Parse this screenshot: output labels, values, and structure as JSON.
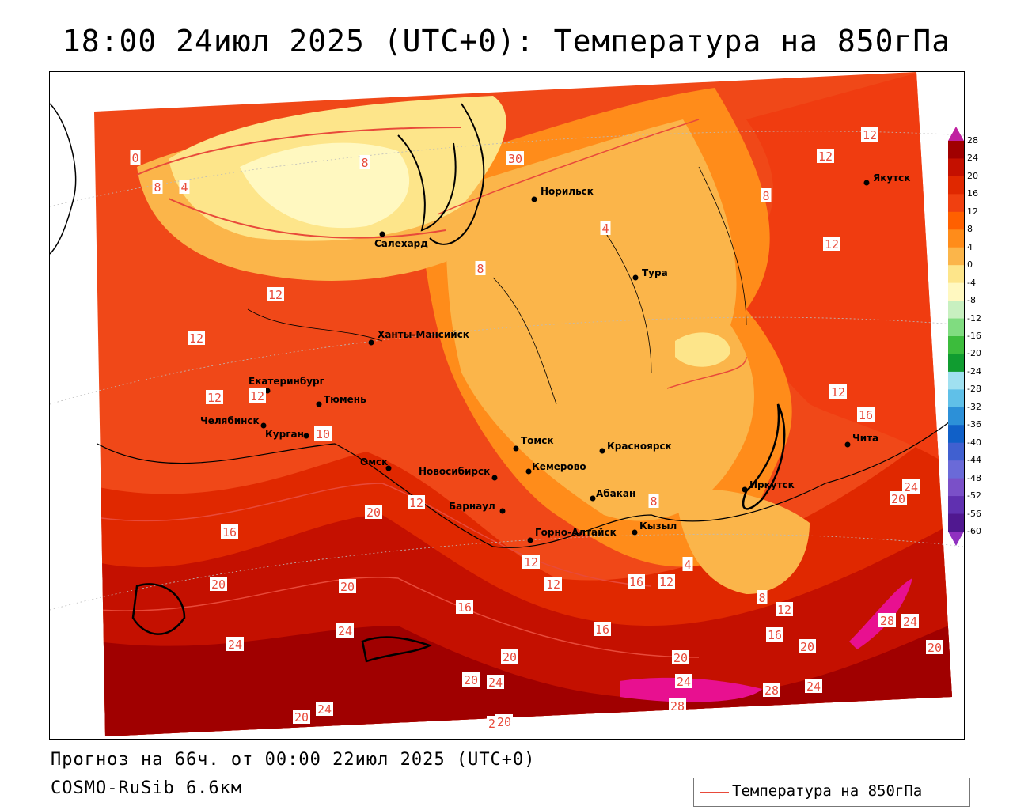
{
  "title": "18:00 24июл 2025 (UTC+0): Температура на 850гПа",
  "footer": {
    "forecast": "Прогноз на 66ч. от 00:00 22июл 2025 (UTC+0)",
    "model": "COSMO-RuSib 6.6км"
  },
  "legend": {
    "label": "Температура на 850гПа",
    "line_color": "#e84a3a"
  },
  "colorbar": {
    "labels": [
      "28",
      "24",
      "20",
      "16",
      "12",
      "8",
      "4",
      "0",
      "-4",
      "-8",
      "-12",
      "-16",
      "-20",
      "-24",
      "-28",
      "-32",
      "-36",
      "-40",
      "-44",
      "-48",
      "-52",
      "-56",
      "-60"
    ],
    "colors": [
      "#a00000",
      "#c41000",
      "#e02800",
      "#f04010",
      "#ff6000",
      "#ff8c1a",
      "#fbb54a",
      "#fde58a",
      "#fff8c0",
      "#c8f0c0",
      "#80dc80",
      "#3cbc3c",
      "#109c30",
      "#a0e0f0",
      "#60c0e8",
      "#2c90d8",
      "#1060c8",
      "#4060d0",
      "#6a6ad8",
      "#7a50c8",
      "#6030b0",
      "#501890"
    ]
  },
  "cities": [
    {
      "name": "Норильск"
    },
    {
      "name": "Якутск"
    },
    {
      "name": "Салехард"
    },
    {
      "name": "Тура"
    },
    {
      "name": "Ханты-Мансийск"
    },
    {
      "name": "Екатеринбург"
    },
    {
      "name": "Тюмень"
    },
    {
      "name": "Челябинск"
    },
    {
      "name": "Курган"
    },
    {
      "name": "Омск"
    },
    {
      "name": "Новосибирск"
    },
    {
      "name": "Томск"
    },
    {
      "name": "Красноярск"
    },
    {
      "name": "Кемерово"
    },
    {
      "name": "Абакан"
    },
    {
      "name": "Иркутск"
    },
    {
      "name": "Чита"
    },
    {
      "name": "Барнаул"
    },
    {
      "name": "Горно-Алтайск"
    },
    {
      "name": "Кызыл"
    }
  ],
  "contour_labels": [
    "12",
    "12",
    "12",
    "12",
    "8",
    "4",
    "0",
    "4",
    "8",
    "4",
    "8",
    "12",
    "8",
    "4",
    "12",
    "12",
    "16",
    "12",
    "10",
    "20",
    "16",
    "12",
    "20",
    "24",
    "20",
    "16",
    "24",
    "16",
    "20",
    "24",
    "20",
    "24",
    "28",
    "28",
    "24",
    "20",
    "24",
    "20",
    "24",
    "12",
    "12",
    "16",
    "12",
    "8",
    "4",
    "8",
    "12",
    "16",
    "20",
    "20",
    "24",
    "28",
    "20",
    "24",
    "20",
    "30",
    "0"
  ]
}
